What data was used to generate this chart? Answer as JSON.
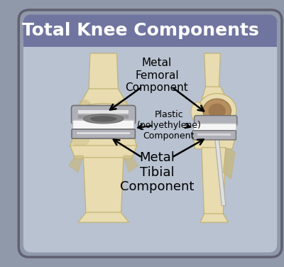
{
  "title": "Total Knee Components",
  "bg_outer": "#9099aa",
  "bg_inner": "#b8c2d0",
  "header_bg": "#7075a0",
  "header_text_color": "#ffffff",
  "label_femoral": "Metal\nFemoral\nComponent",
  "label_plastic": "Plastic\n(polyethylene)\nComponent",
  "label_tibial": "Metal\nTibial\nComponent",
  "bone_color": "#e8dcb0",
  "bone_shadow": "#c8b880",
  "bone_edge": "#c0b070",
  "metal_silver": "#d8d8d8",
  "metal_chrome": "#b0b0b8",
  "metal_dark": "#707070",
  "metal_shine": "#f0f0f0",
  "plastic_white": "#f5f5f5",
  "arrow_color": "#111111",
  "title_fontsize": 18,
  "label_femoral_fontsize": 11,
  "label_plastic_fontsize": 9,
  "label_tibial_fontsize": 13
}
